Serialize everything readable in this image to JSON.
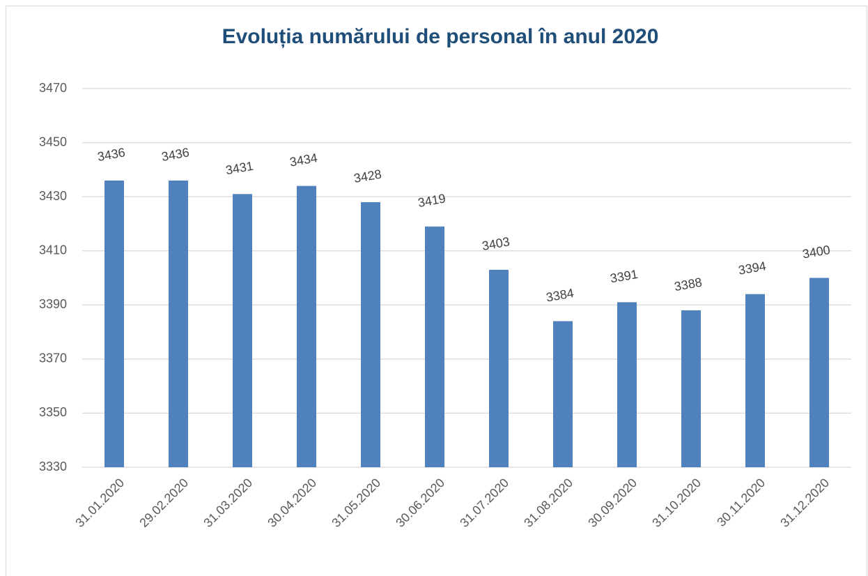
{
  "chart_data": {
    "type": "bar",
    "title": "Evoluția numărului de personal în anul 2020",
    "categories": [
      "31.01.2020",
      "29.02.2020",
      "31.03.2020",
      "30.04.2020",
      "31.05.2020",
      "30.06.2020",
      "31.07.2020",
      "31.08.2020",
      "30.09.2020",
      "31.10.2020",
      "30.11.2020",
      "31.12.2020"
    ],
    "values": [
      3436,
      3436,
      3431,
      3434,
      3428,
      3419,
      3403,
      3384,
      3391,
      3388,
      3394,
      3400
    ],
    "color": "#4f81bd",
    "ylim": [
      3330,
      3470
    ],
    "yticks": [
      3330,
      3350,
      3370,
      3390,
      3410,
      3430,
      3450,
      3470
    ],
    "grid": true
  }
}
